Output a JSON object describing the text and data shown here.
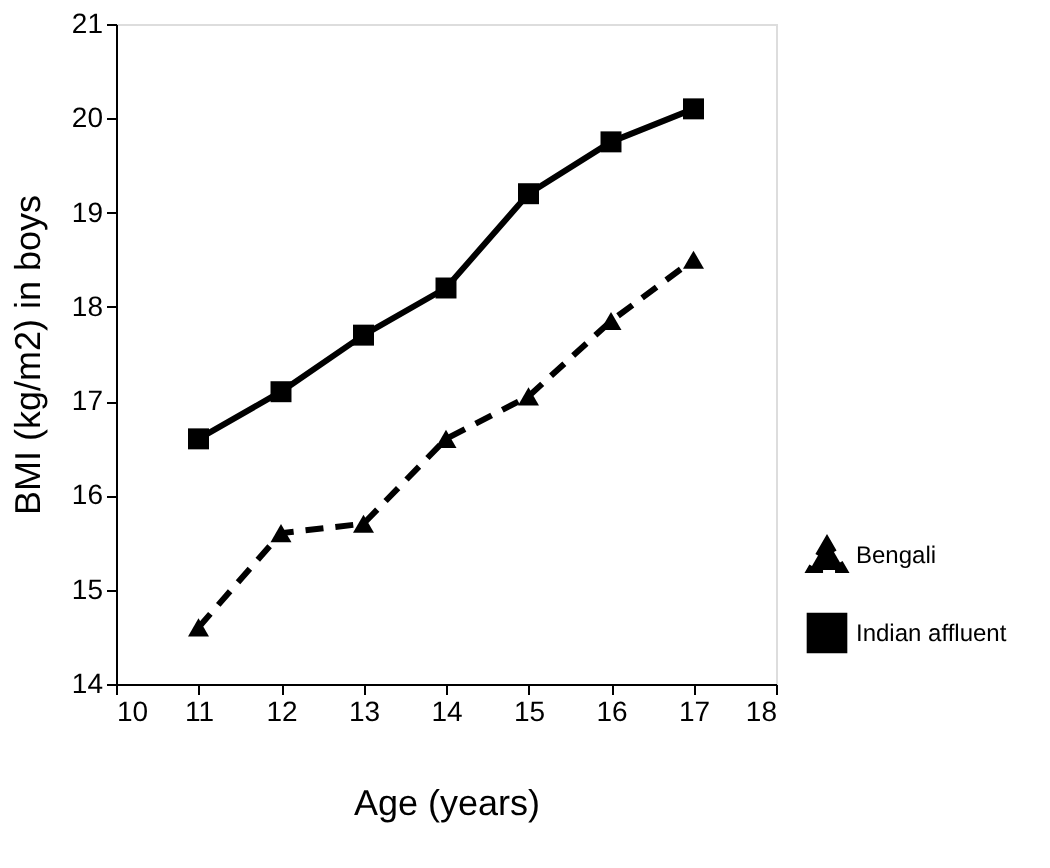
{
  "chart_data": {
    "type": "line",
    "xlabel": "Age (years)",
    "ylabel": "BMI (kg/m2) in boys",
    "x": [
      11,
      12,
      13,
      14,
      15,
      16,
      17
    ],
    "series": [
      {
        "name": "Bengali",
        "color": "#000000",
        "marker": "triangle",
        "line_style": "dashed",
        "values": [
          14.6,
          15.6,
          15.7,
          16.6,
          17.05,
          17.85,
          18.5
        ]
      },
      {
        "name": "Indian affluent",
        "color": "#000000",
        "marker": "square",
        "line_style": "solid",
        "values": [
          16.6,
          17.1,
          17.7,
          18.2,
          19.2,
          19.75,
          20.1
        ]
      }
    ],
    "xlim": [
      10,
      18
    ],
    "xticks": [
      10,
      11,
      12,
      13,
      14,
      15,
      16,
      17,
      18
    ],
    "ylim": [
      14,
      21
    ],
    "yticks": [
      14,
      15,
      16,
      17,
      18,
      19,
      20,
      21
    ],
    "grid": false,
    "legend": "bottom right"
  }
}
